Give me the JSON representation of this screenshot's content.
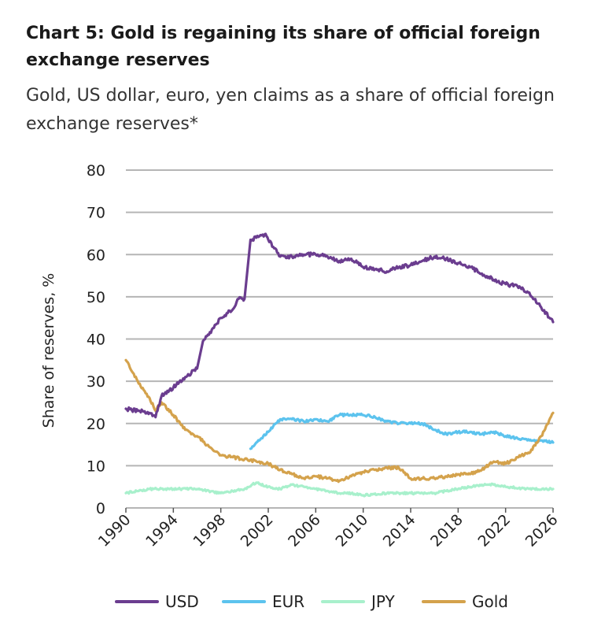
{
  "title": "Chart 5: Gold is regaining its share of official foreign exchange reserves",
  "subtitle": "Gold, US dollar, euro, yen claims as a share of official foreign exchange reserves*",
  "colors": {
    "USD": "#6b3d8f",
    "EUR": "#5cc3ee",
    "JPY": "#a8f0cc",
    "Gold": "#d4a24c",
    "grid": "#b5b5b5"
  },
  "chart_data": {
    "type": "line",
    "ylabel": "Share of reserves, %",
    "xlabel": "",
    "xlim": [
      1990,
      2026
    ],
    "ylim": [
      0,
      80
    ],
    "yticks": [
      "0",
      "10",
      "20",
      "30",
      "40",
      "50",
      "60",
      "70",
      "80"
    ],
    "xticks": [
      "1990",
      "1994",
      "1998",
      "2002",
      "2006",
      "2010",
      "2014",
      "2018",
      "2022",
      "2026"
    ],
    "grid": true,
    "legend_position": "bottom",
    "series": [
      {
        "name": "USD",
        "x": [
          1990,
          1991,
          1992,
          1992.5,
          1993,
          1994,
          1995,
          1996,
          1996.5,
          1997,
          1998,
          1999,
          1999.5,
          2000,
          2000.5,
          2001,
          2001.7,
          2002,
          2003,
          2004,
          2005,
          2006,
          2007,
          2008,
          2009,
          2010,
          2011,
          2012,
          2013,
          2014,
          2015,
          2016,
          2017,
          2018,
          2019,
          2020,
          2021,
          2022,
          2023,
          2024,
          2025,
          2026
        ],
        "values": [
          23.5,
          23,
          22.5,
          21.5,
          26.5,
          28.5,
          31,
          33,
          39.5,
          41,
          45,
          47,
          49.5,
          49.5,
          63.5,
          64,
          64.8,
          63.5,
          59.5,
          59.5,
          60,
          60,
          59.5,
          58.5,
          59,
          57,
          56.5,
          56,
          57,
          57.5,
          58.5,
          59.5,
          59,
          58,
          57,
          55.5,
          54,
          53,
          52.5,
          51,
          47.5,
          44
        ]
      },
      {
        "name": "EUR",
        "x": [
          2000.5,
          2001,
          2002,
          2003,
          2004,
          2005,
          2006,
          2007,
          2008,
          2009,
          2010,
          2011,
          2012,
          2013,
          2014,
          2015,
          2016,
          2017,
          2018,
          2019,
          2020,
          2021,
          2022,
          2023,
          2024,
          2025,
          2026
        ],
        "values": [
          14,
          15.5,
          18,
          21,
          21,
          20.5,
          21,
          20.5,
          22,
          22,
          22,
          21.5,
          20.5,
          20,
          20,
          20,
          18.5,
          17.5,
          18,
          18,
          17.5,
          18,
          17,
          16.5,
          16,
          16,
          15.5
        ]
      },
      {
        "name": "JPY",
        "x": [
          1990,
          1992,
          1994,
          1996,
          1998,
          1999,
          2000,
          2001,
          2002,
          2003,
          2004,
          2005,
          2006,
          2007,
          2008,
          2009,
          2010,
          2012,
          2014,
          2016,
          2017,
          2018,
          2019,
          2020,
          2021,
          2022,
          2024,
          2026
        ],
        "values": [
          3.5,
          4.5,
          4.5,
          4.5,
          3.5,
          4,
          4.5,
          6,
          5,
          4.5,
          5.5,
          5,
          4.5,
          4,
          3.5,
          3.5,
          3,
          3.5,
          3.5,
          3.5,
          4,
          4.5,
          5,
          5.5,
          5.5,
          5,
          4.5,
          4.5
        ]
      },
      {
        "name": "Gold",
        "x": [
          1990,
          1991,
          1992,
          1992.5,
          1993,
          1994,
          1995,
          1996,
          1997,
          1998,
          1999,
          2000,
          2001,
          2002,
          2003,
          2004,
          2005,
          2006,
          2007,
          2008,
          2009,
          2010,
          2011,
          2012,
          2013,
          2014,
          2015,
          2016,
          2017,
          2018,
          2019,
          2020,
          2021,
          2022,
          2023,
          2024,
          2025,
          2026
        ],
        "values": [
          35,
          30,
          26,
          23,
          25,
          22,
          18.5,
          17,
          14.5,
          12.5,
          12,
          11.5,
          11,
          10.5,
          9,
          8,
          7,
          7.5,
          7,
          6.5,
          7.5,
          8.5,
          9,
          9.5,
          9.5,
          7,
          7,
          7,
          7.5,
          8,
          8,
          9,
          11,
          10.5,
          12,
          13,
          17,
          22.5
        ]
      }
    ]
  }
}
